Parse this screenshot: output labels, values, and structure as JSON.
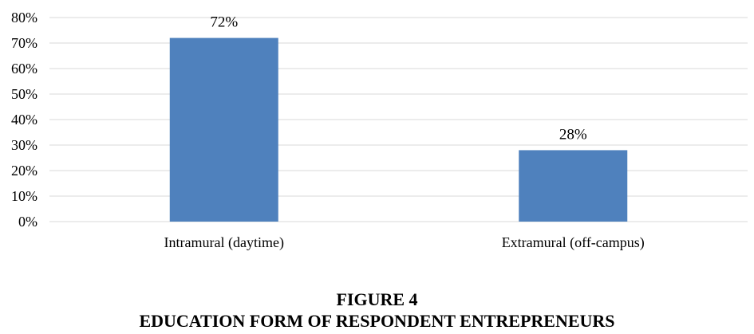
{
  "figure": {
    "number": "FIGURE 4",
    "title": "EDUCATION FORM OF RESPONDENT ENTREPRENEURS"
  },
  "chart_data": {
    "type": "bar",
    "categories": [
      "Intramural (daytime)",
      "Extramural (off-campus)"
    ],
    "values": [
      72,
      28
    ],
    "data_labels": [
      "72%",
      "28%"
    ],
    "yticks": [
      0,
      10,
      20,
      30,
      40,
      50,
      60,
      70,
      80
    ],
    "ytick_labels": [
      "0%",
      "10%",
      "20%",
      "30%",
      "40%",
      "50%",
      "60%",
      "70%",
      "80%"
    ],
    "ylim": [
      0,
      80
    ],
    "grid": true,
    "legend": "none",
    "bar_color": "#4f81bd",
    "grid_color": "#d9d9d9"
  }
}
